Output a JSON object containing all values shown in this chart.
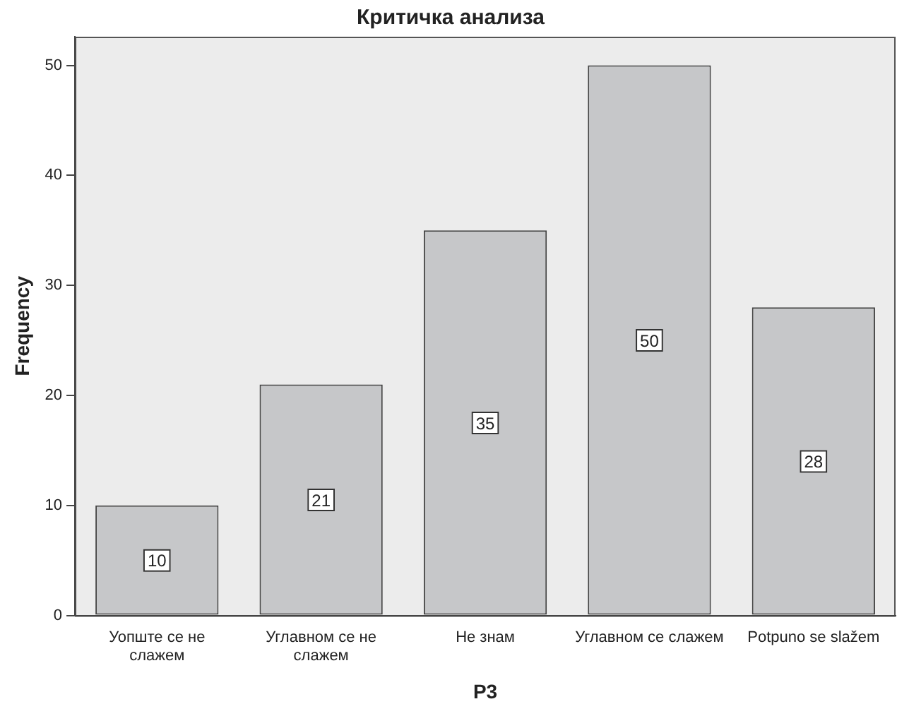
{
  "chart_data": {
    "type": "bar",
    "title": "Критичка анализа",
    "xlabel": "P3",
    "ylabel": "Frequency",
    "categories": [
      "Уопште се не слажем",
      "Углавном се не слажем",
      "Не знам",
      "Углавном се слажем",
      "Potpuno se slažem"
    ],
    "values": [
      10,
      21,
      35,
      50,
      28
    ],
    "color": "#c6c7c9",
    "ylim": [
      0,
      52.6
    ],
    "yticks": [
      0,
      10,
      20,
      30,
      40,
      50
    ],
    "grid": false,
    "legend": false,
    "data_labels": true
  }
}
